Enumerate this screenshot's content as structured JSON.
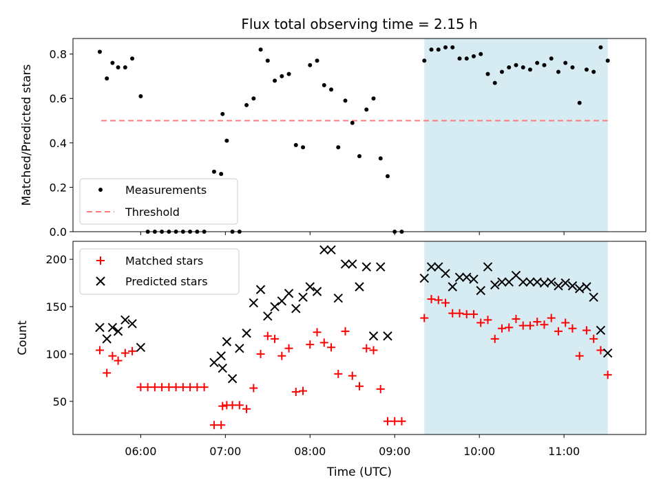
{
  "title": "Flux total observing time = 2.15 h",
  "chart_data": [
    {
      "type": "scatter",
      "xlabel": "",
      "ylabel": "Matched/Predicted stars",
      "xlim": [
        "05:12",
        "11:58"
      ],
      "ylim": [
        0,
        0.87
      ],
      "yticks": [
        0.0,
        0.2,
        0.4,
        0.6,
        0.8
      ],
      "ytick_labels": [
        "0.0",
        "0.2",
        "0.4",
        "0.6",
        "0.8"
      ],
      "legend": {
        "position": "lower-left",
        "entries": [
          "Measurements",
          "Threshold"
        ]
      },
      "highlight_span": {
        "x": [
          "09:21",
          "11:31"
        ],
        "color": "#add8e6"
      },
      "threshold": {
        "name": "Threshold",
        "y": 0.5,
        "x": [
          "05:32",
          "11:31"
        ],
        "color": "#ff7b7b"
      },
      "series": [
        {
          "name": "Measurements",
          "marker": "dot",
          "color": "#000000",
          "x": [
            "05:31",
            "05:36",
            "05:40",
            "05:44",
            "05:49",
            "05:54",
            "06:00",
            "06:05",
            "06:10",
            "06:15",
            "06:20",
            "06:25",
            "06:30",
            "06:35",
            "06:40",
            "06:45",
            "06:52",
            "06:57",
            "06:58",
            "07:01",
            "07:05",
            "07:10",
            "07:15",
            "07:20",
            "07:25",
            "07:30",
            "07:35",
            "07:40",
            "07:45",
            "07:50",
            "07:55",
            "08:00",
            "08:05",
            "08:10",
            "08:15",
            "08:20",
            "08:25",
            "08:30",
            "08:35",
            "08:40",
            "08:45",
            "08:50",
            "08:55",
            "09:00",
            "09:05",
            "09:21",
            "09:26",
            "09:31",
            "09:36",
            "09:41",
            "09:46",
            "09:51",
            "09:56",
            "10:01",
            "10:06",
            "10:11",
            "10:16",
            "10:21",
            "10:26",
            "10:31",
            "10:36",
            "10:41",
            "10:46",
            "10:51",
            "10:56",
            "11:01",
            "11:06",
            "11:11",
            "11:16",
            "11:21",
            "11:26",
            "11:31"
          ],
          "y": [
            0.81,
            0.69,
            0.76,
            0.74,
            0.74,
            0.78,
            0.61,
            0.0,
            0.0,
            0.0,
            0.0,
            0.0,
            0.0,
            0.0,
            0.0,
            0.0,
            0.27,
            0.26,
            0.53,
            0.41,
            0.0,
            0.0,
            0.57,
            0.6,
            0.82,
            0.77,
            0.68,
            0.7,
            0.71,
            0.39,
            0.38,
            0.75,
            0.77,
            0.66,
            0.64,
            0.38,
            0.59,
            0.49,
            0.34,
            0.55,
            0.6,
            0.33,
            0.25,
            0.0,
            0.0,
            0.77,
            0.82,
            0.82,
            0.83,
            0.83,
            0.78,
            0.78,
            0.79,
            0.8,
            0.71,
            0.67,
            0.72,
            0.74,
            0.75,
            0.74,
            0.73,
            0.76,
            0.75,
            0.78,
            0.72,
            0.76,
            0.74,
            0.58,
            0.73,
            0.72,
            0.83,
            0.77
          ]
        }
      ]
    },
    {
      "type": "scatter",
      "xlabel": "Time (UTC)",
      "ylabel": "Count",
      "xlim": [
        "05:12",
        "11:58"
      ],
      "ylim": [
        15,
        219
      ],
      "yticks": [
        50,
        100,
        150,
        200
      ],
      "ytick_labels": [
        "50",
        "100",
        "150",
        "200"
      ],
      "xtick_labels": [
        "06:00",
        "07:00",
        "08:00",
        "09:00",
        "10:00",
        "11:00"
      ],
      "legend": {
        "position": "top-left",
        "entries": [
          "Matched stars",
          "Predicted stars"
        ]
      },
      "highlight_span": {
        "x": [
          "09:21",
          "11:31"
        ],
        "color": "#add8e6"
      },
      "series": [
        {
          "name": "Matched stars",
          "marker": "plus",
          "color": "#ff0000",
          "x": [
            "05:31",
            "05:36",
            "05:40",
            "05:44",
            "05:49",
            "05:54",
            "06:00",
            "06:05",
            "06:10",
            "06:15",
            "06:20",
            "06:25",
            "06:30",
            "06:35",
            "06:40",
            "06:45",
            "06:52",
            "06:57",
            "06:58",
            "07:01",
            "07:05",
            "07:10",
            "07:15",
            "07:20",
            "07:25",
            "07:30",
            "07:35",
            "07:40",
            "07:45",
            "07:50",
            "07:55",
            "08:00",
            "08:05",
            "08:10",
            "08:15",
            "08:20",
            "08:25",
            "08:30",
            "08:35",
            "08:40",
            "08:45",
            "08:50",
            "08:55",
            "09:00",
            "09:05",
            "09:21",
            "09:26",
            "09:31",
            "09:36",
            "09:41",
            "09:46",
            "09:51",
            "09:56",
            "10:01",
            "10:06",
            "10:11",
            "10:16",
            "10:21",
            "10:26",
            "10:31",
            "10:36",
            "10:41",
            "10:46",
            "10:51",
            "10:56",
            "11:01",
            "11:06",
            "11:11",
            "11:16",
            "11:21",
            "11:26",
            "11:31"
          ],
          "y": [
            104,
            80,
            98,
            93,
            101,
            103,
            65,
            65,
            65,
            65,
            65,
            65,
            65,
            65,
            65,
            65,
            25,
            25,
            45,
            46,
            46,
            46,
            42,
            64,
            100,
            119,
            116,
            98,
            106,
            60,
            61,
            110,
            123,
            112,
            107,
            79,
            124,
            77,
            66,
            106,
            104,
            63,
            29,
            29,
            29,
            138,
            158,
            157,
            154,
            143,
            143,
            142,
            142,
            133,
            136,
            116,
            127,
            128,
            137,
            130,
            130,
            134,
            131,
            138,
            124,
            133,
            127,
            98,
            125,
            116,
            104,
            78
          ]
        },
        {
          "name": "Predicted stars",
          "marker": "x",
          "color": "#000000",
          "x": [
            "05:31",
            "05:36",
            "05:40",
            "05:44",
            "05:49",
            "05:54",
            "06:00",
            "06:52",
            "06:57",
            "06:58",
            "07:01",
            "07:05",
            "07:10",
            "07:15",
            "07:20",
            "07:25",
            "07:30",
            "07:35",
            "07:40",
            "07:45",
            "07:50",
            "07:55",
            "08:00",
            "08:05",
            "08:10",
            "08:15",
            "08:20",
            "08:25",
            "08:30",
            "08:35",
            "08:40",
            "08:45",
            "08:50",
            "08:55",
            "09:21",
            "09:26",
            "09:31",
            "09:36",
            "09:41",
            "09:46",
            "09:51",
            "09:56",
            "10:01",
            "10:06",
            "10:11",
            "10:16",
            "10:21",
            "10:26",
            "10:31",
            "10:36",
            "10:41",
            "10:46",
            "10:51",
            "10:56",
            "11:01",
            "11:06",
            "11:11",
            "11:16",
            "11:21",
            "11:26",
            "11:31"
          ],
          "y": [
            128,
            116,
            128,
            124,
            136,
            132,
            107,
            91,
            98,
            85,
            113,
            74,
            106,
            122,
            154,
            168,
            140,
            150,
            156,
            164,
            148,
            160,
            171,
            166,
            210,
            210,
            159,
            195,
            195,
            171,
            192,
            119,
            192,
            119,
            180,
            192,
            192,
            185,
            171,
            181,
            181,
            179,
            167,
            192,
            173,
            176,
            176,
            183,
            176,
            176,
            176,
            175,
            176,
            172,
            175,
            172,
            169,
            171,
            160,
            125,
            101
          ]
        }
      ]
    }
  ]
}
